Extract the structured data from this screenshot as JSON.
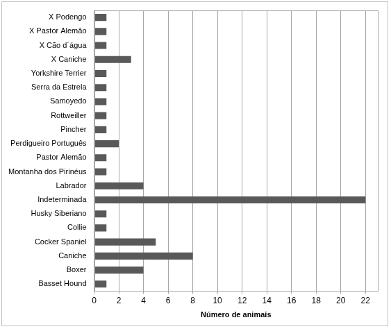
{
  "chart_data": {
    "type": "bar",
    "orientation": "horizontal",
    "x_label": "Número de animais",
    "categories": [
      "X Podengo",
      "X Pastor Alemão",
      "X Cão d´água",
      "X Caniche",
      "Yorkshire Terrier",
      "Serra da Estrela",
      "Samoyedo",
      "Rottweiller",
      "Pincher",
      "Perdigueiro Português",
      "Pastor Alemão",
      "Montanha dos Pirinéus",
      "Labrador",
      "Indeterminada",
      "Husky Siberiano",
      "Collie",
      "Cocker Spaniel",
      "Caniche",
      "Boxer",
      "Basset Hound"
    ],
    "values": [
      1,
      1,
      1,
      3,
      1,
      1,
      1,
      1,
      1,
      2,
      1,
      1,
      4,
      22,
      1,
      1,
      5,
      8,
      4,
      1
    ],
    "color": "#595959",
    "xlim": [
      0,
      23
    ],
    "xticks": [
      0,
      2,
      4,
      6,
      8,
      10,
      12,
      14,
      16,
      18,
      20,
      22
    ],
    "grid": true
  }
}
